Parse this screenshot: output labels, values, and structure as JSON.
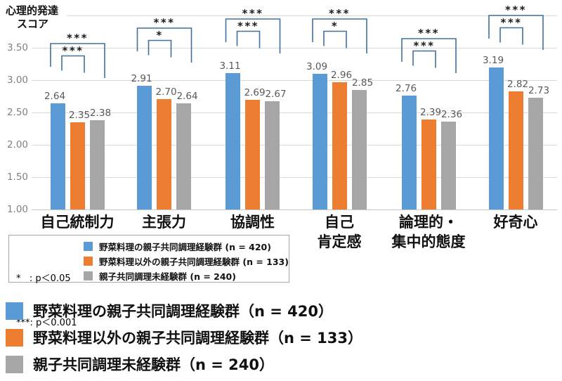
{
  "axis_title": {
    "line1": "心理的発達",
    "line2": "スコア"
  },
  "chart_data": {
    "type": "bar",
    "title": "心理的発達スコア",
    "categories": [
      "自己統制力",
      "主張力",
      "協調性",
      "自己肯定感",
      "論理的・集中的態度",
      "好奇心"
    ],
    "category_label_lines": [
      [
        "自己統制力"
      ],
      [
        "主張力"
      ],
      [
        "協調性"
      ],
      [
        "自己",
        "肯定感"
      ],
      [
        "論理的・",
        "集中的態度"
      ],
      [
        "好奇心"
      ]
    ],
    "series": [
      {
        "name": "野菜料理の親子共同調理経験群 (n = 420)",
        "color": "#5B9BD5",
        "values": [
          2.64,
          2.91,
          3.11,
          3.09,
          2.76,
          3.19
        ]
      },
      {
        "name": "野菜料理以外の親子共同調理経験群 (n = 133)",
        "color": "#ED7D31",
        "values": [
          2.35,
          2.7,
          2.69,
          2.96,
          2.39,
          2.82
        ]
      },
      {
        "name": "親子共同調理未経験群 (n = 240)",
        "color": "#A6A6A6",
        "values": [
          2.38,
          2.64,
          2.67,
          2.85,
          2.36,
          2.73
        ]
      }
    ],
    "ylim": [
      1.0,
      4.0
    ],
    "yticks": [
      {
        "value": 1.0,
        "label": "1.00"
      },
      {
        "value": 1.5,
        "label": "1.50"
      },
      {
        "value": 2.0,
        "label": "2.00"
      },
      {
        "value": 2.5,
        "label": "2.50"
      },
      {
        "value": 3.0,
        "label": "3.00"
      },
      {
        "value": 3.5,
        "label": "3.50"
      }
    ],
    "grid": true,
    "legend_position": "inside-bottom-left box and below chart",
    "significance": [
      {
        "category": "自己統制力",
        "inner": "***",
        "outer": "***"
      },
      {
        "category": "主張力",
        "inner": "*",
        "outer": "***"
      },
      {
        "category": "協調性",
        "inner": "***",
        "outer": "***"
      },
      {
        "category": "自己肯定感",
        "inner": "*",
        "outer": "***"
      },
      {
        "category": "論理的・集中的態度",
        "inner": "***",
        "outer": "***"
      },
      {
        "category": "好奇心",
        "inner": "***",
        "outer": "***"
      }
    ]
  },
  "sig_key": {
    "line1": "*   : p＜0.05",
    "line2": "***: p＜0.001"
  },
  "inline_legend": {
    "items": [
      {
        "label": "野菜料理の親子共同調理経験群 (n = 420)",
        "color": "#5B9BD5"
      },
      {
        "label": "野菜料理以外の親子共同調理経験群 (n = 133)",
        "color": "#ED7D31"
      },
      {
        "label": "親子共同調理未経験群 (n = 240)",
        "color": "#A6A6A6"
      }
    ]
  },
  "bottom_legend": {
    "items": [
      {
        "label": "野菜料理の親子共同調理経験群（n = 420）",
        "color": "#5B9BD5"
      },
      {
        "label": "野菜料理以外の親子共同調理経験群（n = 133）",
        "color": "#ED7D31"
      },
      {
        "label": "親子共同調理未経験群（n = 240）",
        "color": "#A6A6A6"
      }
    ]
  },
  "colors": {
    "bracket": "#41719C",
    "gridline": "#D9D9D9",
    "tick_label": "#808080",
    "data_label": "#595959"
  }
}
